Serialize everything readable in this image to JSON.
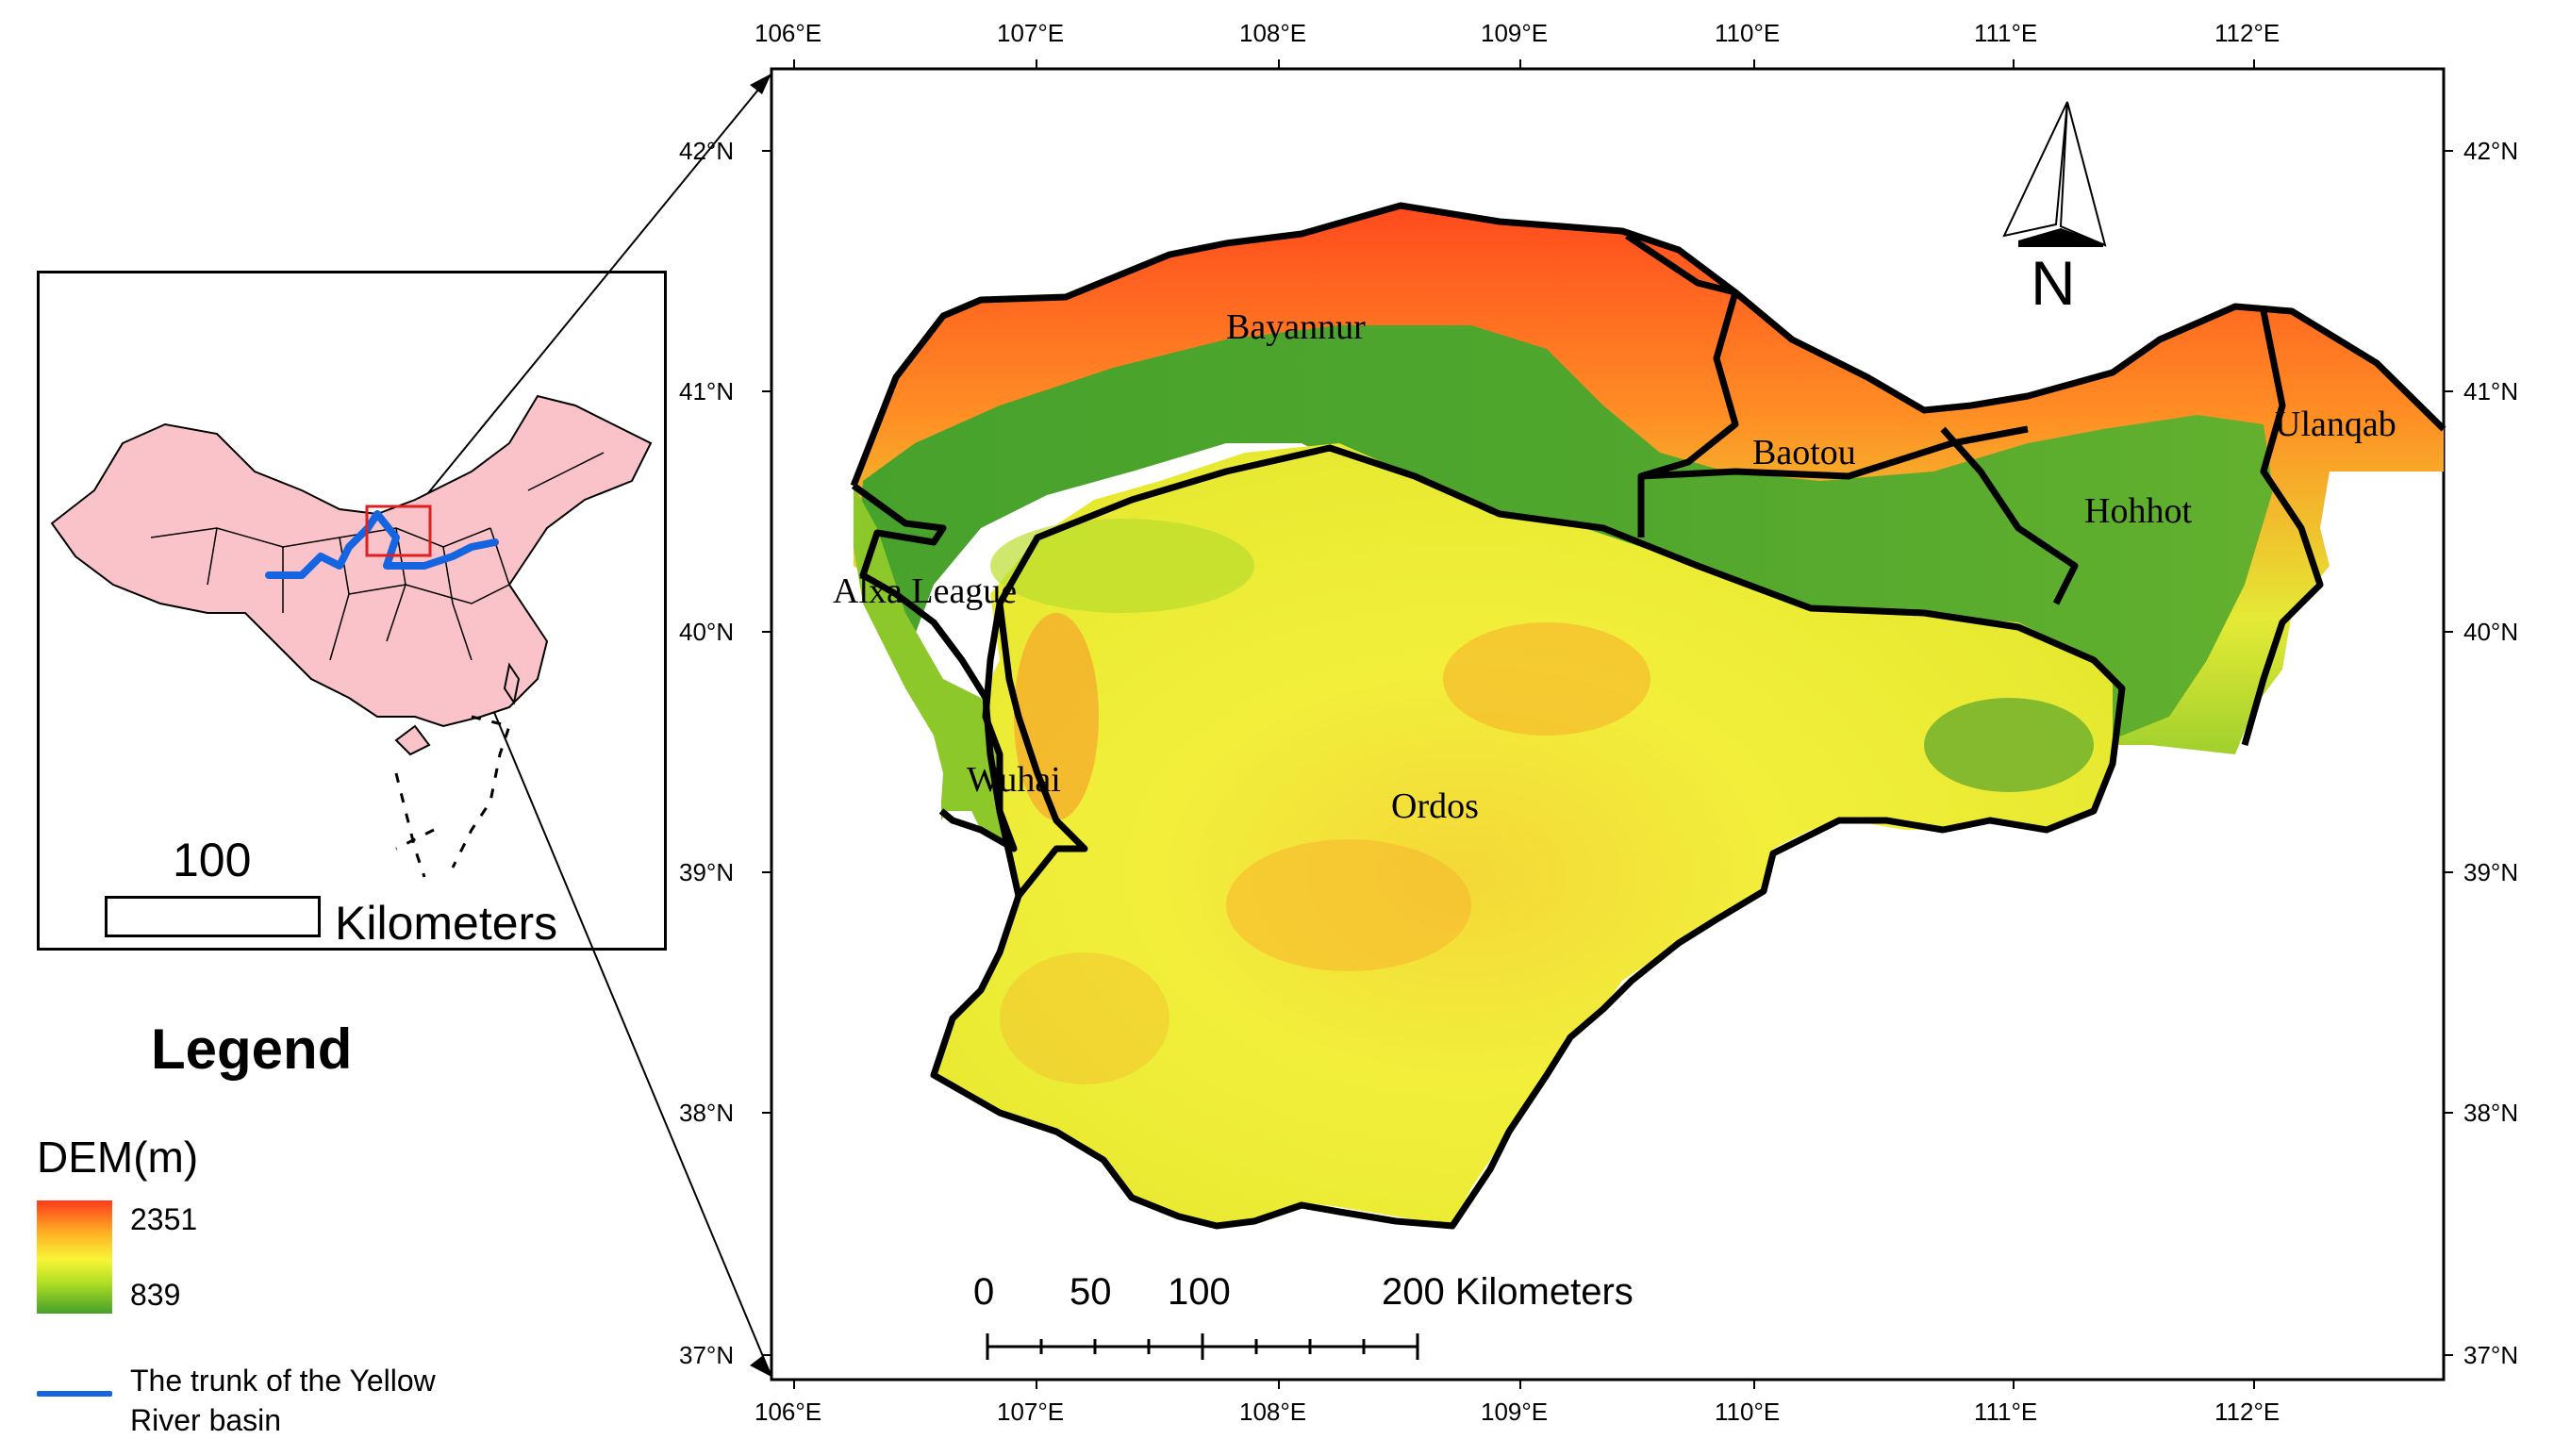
{
  "axes": {
    "lon_labels": [
      "106°E",
      "107°E",
      "108°E",
      "109°E",
      "110°E",
      "111°E",
      "112°E"
    ],
    "lat_labels": [
      "42°N",
      "41°N",
      "40°N",
      "39°N",
      "38°N",
      "37°N"
    ]
  },
  "regions": {
    "bayannur": "Bayannur",
    "baotou": "Baotou",
    "ulanqab": "Ulanqab",
    "hohhot": "Hohhot",
    "alxa": "Alxa League",
    "wuhai": "Wuhai",
    "ordos": "Ordos"
  },
  "north_arrow": {
    "label": "N"
  },
  "scale_bar": {
    "ticks": [
      "0",
      "50",
      "100"
    ],
    "end_label": "200 Kilometers"
  },
  "inset": {
    "scale_value": "100",
    "scale_unit": "Kilometers"
  },
  "legend": {
    "title": "Legend",
    "dem_title": "DEM(m)",
    "dem_high": "2351",
    "dem_low": "839",
    "river_label": "The trunk of the Yellow River basin"
  },
  "colors": {
    "dem_high": "#ff3b1c",
    "dem_mid": "#f8f538",
    "dem_low": "#45a02b",
    "china_fill": "#f9c3c9",
    "river": "#1565e0",
    "highlight_box": "#e02020"
  }
}
